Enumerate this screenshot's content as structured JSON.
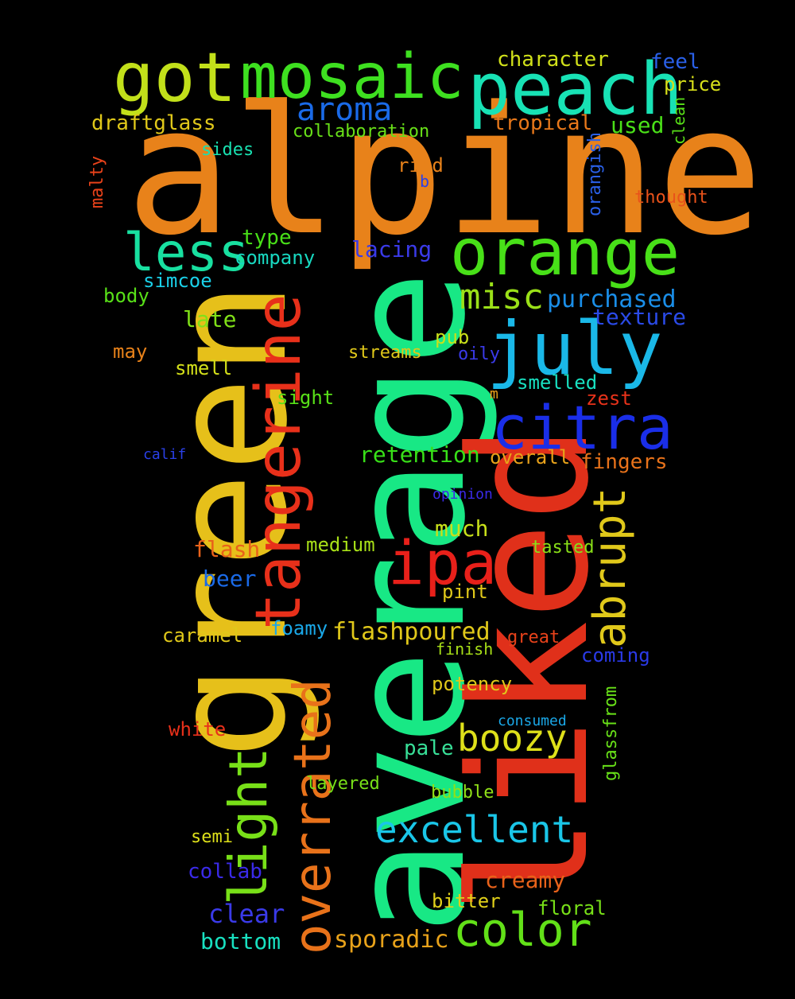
{
  "background": "#000000",
  "words": [
    {
      "text": "alpine",
      "color": "#e8821a"
    },
    {
      "text": "average",
      "color": "#18e885"
    },
    {
      "text": "liked",
      "color": "#e0301a"
    },
    {
      "text": "green",
      "color": "#e6c01a"
    },
    {
      "text": "peach",
      "color": "#18e2b5"
    },
    {
      "text": "mosaic",
      "color": "#3ee020"
    },
    {
      "text": "got",
      "color": "#c2e01a"
    },
    {
      "text": "orange",
      "color": "#48e018"
    },
    {
      "text": "july",
      "color": "#1ab8e8"
    },
    {
      "text": "citra",
      "color": "#1a2ee8"
    },
    {
      "text": "tangerine",
      "color": "#e8301a"
    },
    {
      "text": "less",
      "color": "#18e0a0"
    },
    {
      "text": "aroma",
      "color": "#1a6ae8"
    },
    {
      "text": "ipa",
      "color": "#e8201a"
    },
    {
      "text": "overrated",
      "color": "#e8721a"
    },
    {
      "text": "light",
      "color": "#78e018"
    },
    {
      "text": "abrupt",
      "color": "#e0c81a"
    },
    {
      "text": "color",
      "color": "#62e018"
    },
    {
      "text": "excellent",
      "color": "#1ac6e8"
    },
    {
      "text": "boozy",
      "color": "#dee01a"
    },
    {
      "text": "misc",
      "color": "#9ae018"
    },
    {
      "text": "purchased",
      "color": "#1a8ee8"
    },
    {
      "text": "texture",
      "color": "#2a4ae8"
    },
    {
      "text": "character",
      "color": "#d0e01a"
    },
    {
      "text": "feel",
      "color": "#2a60e8"
    },
    {
      "text": "price",
      "color": "#d8e01a"
    },
    {
      "text": "clean",
      "color": "#58e018"
    },
    {
      "text": "draftglass",
      "color": "#e0c81a"
    },
    {
      "text": "tropical",
      "color": "#e8781a"
    },
    {
      "text": "used",
      "color": "#4ae018"
    },
    {
      "text": "collaboration",
      "color": "#68e018"
    },
    {
      "text": "sides",
      "color": "#18e0b0"
    },
    {
      "text": "malty",
      "color": "#e8421a"
    },
    {
      "text": "rind",
      "color": "#e8821a"
    },
    {
      "text": "b",
      "color": "#2a40e8"
    },
    {
      "text": "orangish",
      "color": "#2a60e8"
    },
    {
      "text": "thought",
      "color": "#e8521a"
    },
    {
      "text": "type",
      "color": "#48e018"
    },
    {
      "text": "company",
      "color": "#18d8c0"
    },
    {
      "text": "lacing",
      "color": "#3a3ae8"
    },
    {
      "text": "simcoe",
      "color": "#1ad0e8"
    },
    {
      "text": "body",
      "color": "#58e018"
    },
    {
      "text": "late",
      "color": "#80e018"
    },
    {
      "text": "may",
      "color": "#e8821a"
    },
    {
      "text": "smell",
      "color": "#d4e01a"
    },
    {
      "text": "streams",
      "color": "#e0c81a"
    },
    {
      "text": "pub",
      "color": "#c8e01a"
    },
    {
      "text": "oily",
      "color": "#3a3ae8"
    },
    {
      "text": "smelled",
      "color": "#18e0c0"
    },
    {
      "text": "m",
      "color": "#e8a01a"
    },
    {
      "text": "zest",
      "color": "#e8321a"
    },
    {
      "text": "sight",
      "color": "#58e018"
    },
    {
      "text": "calif",
      "color": "#2a40e8"
    },
    {
      "text": "retention",
      "color": "#38e018"
    },
    {
      "text": "overall",
      "color": "#e8a21a"
    },
    {
      "text": "fingers",
      "color": "#e8721a"
    },
    {
      "text": "opinion",
      "color": "#3a2ae8"
    },
    {
      "text": "much",
      "color": "#c8e01a"
    },
    {
      "text": "flash",
      "color": "#e8621a"
    },
    {
      "text": "medium",
      "color": "#a8e018"
    },
    {
      "text": "tasted",
      "color": "#8ae018"
    },
    {
      "text": "beer",
      "color": "#1a6ae8"
    },
    {
      "text": "pint",
      "color": "#e0c81a"
    },
    {
      "text": "caramel",
      "color": "#e0c81a"
    },
    {
      "text": "foamy",
      "color": "#1aa8e8"
    },
    {
      "text": "flashpoured",
      "color": "#e0c81a"
    },
    {
      "text": "great",
      "color": "#e8421a"
    },
    {
      "text": "finish",
      "color": "#a8e018"
    },
    {
      "text": "coming",
      "color": "#2a3ae8"
    },
    {
      "text": "glassfrom",
      "color": "#68e018"
    },
    {
      "text": "potency",
      "color": "#e0c81a"
    },
    {
      "text": "white",
      "color": "#e8301a"
    },
    {
      "text": "consumed",
      "color": "#1aa8e8"
    },
    {
      "text": "pale",
      "color": "#38e098"
    },
    {
      "text": "layered",
      "color": "#78e018"
    },
    {
      "text": "bubble",
      "color": "#90e018"
    },
    {
      "text": "semi",
      "color": "#dee01a"
    },
    {
      "text": "collab",
      "color": "#3a2ae8"
    },
    {
      "text": "creamy",
      "color": "#e8621a"
    },
    {
      "text": "floral",
      "color": "#78e018"
    },
    {
      "text": "bitter",
      "color": "#e0d01a"
    },
    {
      "text": "clear",
      "color": "#3a3ae8"
    },
    {
      "text": "sporadic",
      "color": "#e8a21a"
    },
    {
      "text": "bottom",
      "color": "#18e0c0"
    }
  ]
}
